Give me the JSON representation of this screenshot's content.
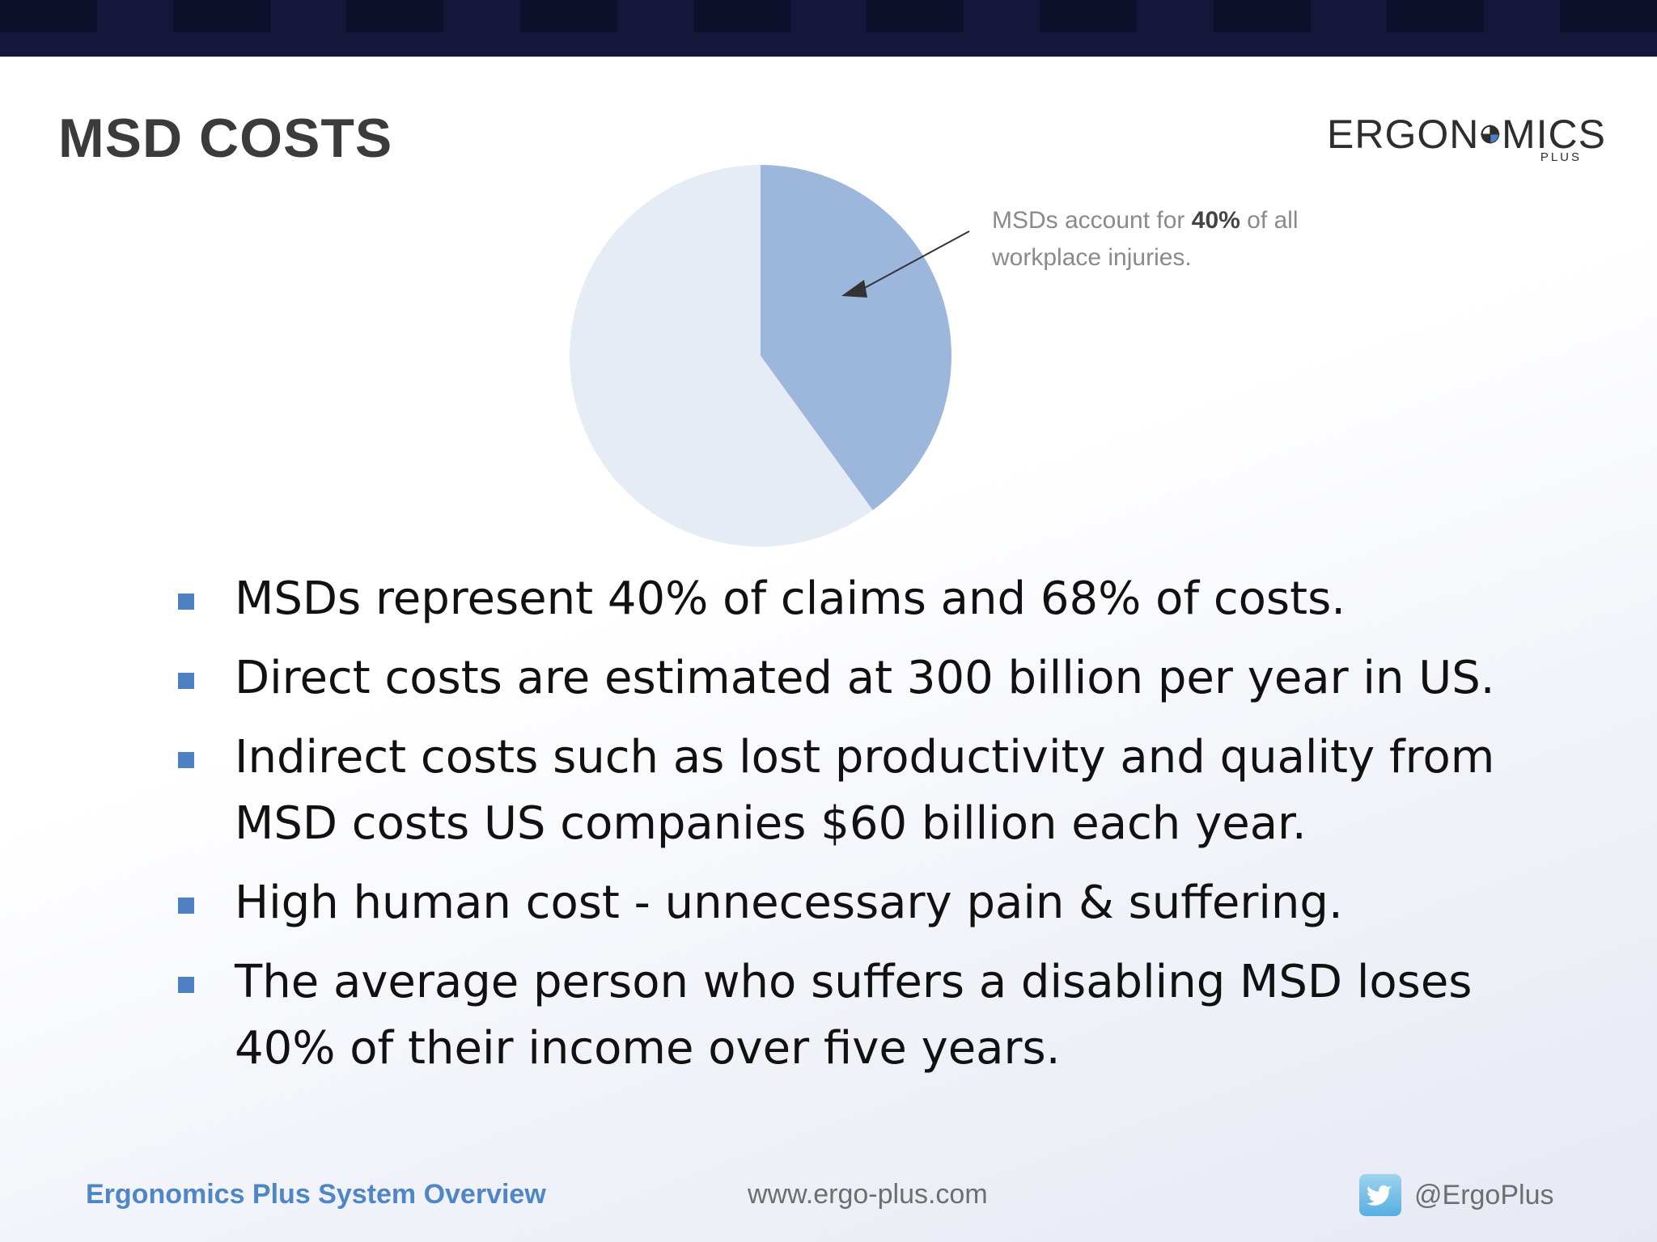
{
  "slide": {
    "title": "MSD COSTS"
  },
  "logo": {
    "word_left": "ERGON",
    "word_right": "MICS",
    "sub": "PLUS",
    "icon": "compass-logo-icon"
  },
  "chart_data": {
    "type": "pie",
    "slices": [
      {
        "label": "MSDs",
        "value": 40,
        "color": "#9db6dc"
      },
      {
        "label": "",
        "value": 60,
        "color": "#e6ecf5"
      }
    ],
    "annotation": {
      "pre": "MSDs account for ",
      "bold": "40%",
      "post": " of all workplace injuries."
    }
  },
  "bullets": [
    "MSDs represent 40% of claims and 68% of costs.",
    "Direct costs are estimated at 300 billion per year in US.",
    "Indirect costs such as lost productivity and quality from MSD costs US companies $60 billion each year.",
    "High human cost - unnecessary pain & suffering.",
    "The average person who suffers a disabling MSD loses 40% of their income over five years."
  ],
  "footer": {
    "left": "Ergonomics Plus System Overview",
    "center": "www.ergo-plus.com",
    "right": "@ErgoPlus",
    "right_icon": "twitter-icon"
  },
  "colors": {
    "topbar": "#15173a",
    "accent": "#4f80c4"
  }
}
